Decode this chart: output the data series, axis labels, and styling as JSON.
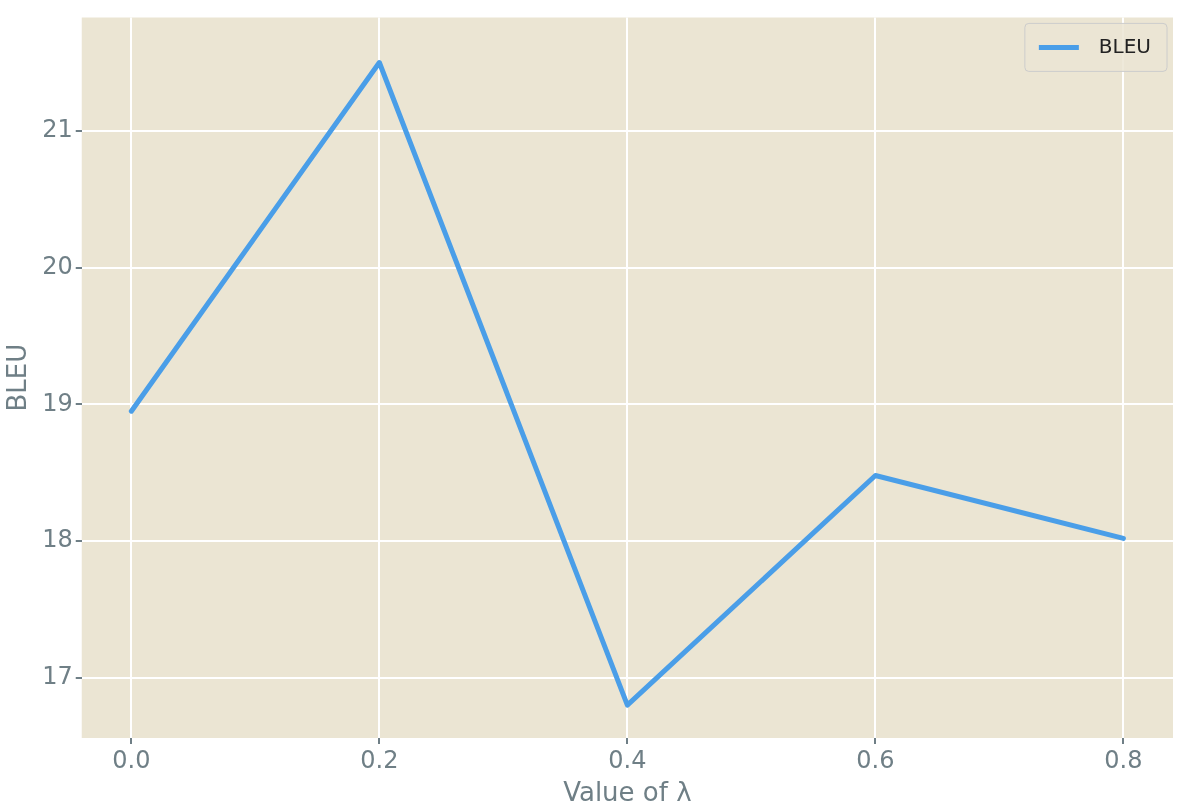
{
  "chart_data": {
    "type": "line",
    "xlabel": "Value of λ",
    "ylabel": "BLEU",
    "x": [
      0.0,
      0.2,
      0.4,
      0.6,
      0.8
    ],
    "series": [
      {
        "name": "BLEU",
        "color": "#4a9ee8",
        "values": [
          18.95,
          21.5,
          16.8,
          18.48,
          18.02
        ]
      }
    ],
    "xlim": [
      -0.04,
      0.84
    ],
    "xticks": [
      {
        "value": 0,
        "label": "0.0"
      },
      0.2,
      0.4,
      0.6,
      0.8
    ],
    "ylim": [
      16.56,
      21.83
    ],
    "yticks": [
      17,
      18,
      19,
      20,
      21
    ],
    "grid": true,
    "legend": "top right",
    "marker": "none",
    "line_style": "solid"
  }
}
